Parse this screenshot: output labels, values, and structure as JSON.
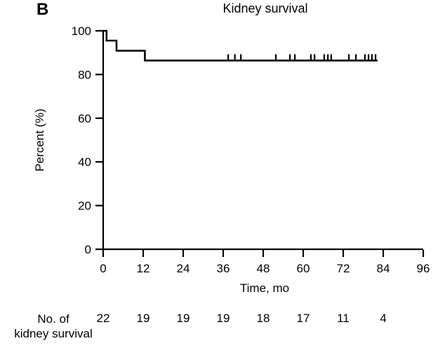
{
  "panel_label": "B",
  "chart_data": {
    "type": "line",
    "subtype": "kaplan-meier-step-curve",
    "title": "Kidney survival",
    "xlabel": "Time, mo",
    "ylabel": "Percent (%)",
    "xlim": [
      0,
      96
    ],
    "ylim": [
      0,
      100
    ],
    "x_ticks": [
      0,
      12,
      24,
      36,
      48,
      60,
      72,
      84,
      96
    ],
    "y_ticks": [
      0,
      20,
      40,
      60,
      80,
      100
    ],
    "grid": false,
    "legend": "none",
    "line_color": "#000000",
    "background_color": "#ffffff",
    "series": [
      {
        "name": "kidney survival",
        "step_points": [
          [
            0,
            100
          ],
          [
            1,
            100
          ],
          [
            1,
            95.5
          ],
          [
            4,
            95.5
          ],
          [
            4,
            90.9
          ],
          [
            12.5,
            90.9
          ],
          [
            12.5,
            86.4
          ],
          [
            82,
            86.4
          ]
        ],
        "censor_times": [
          37.5,
          39.5,
          41.3,
          51.8,
          56.0,
          57.5,
          62.3,
          63.4,
          66.3,
          67.4,
          68.4,
          73.7,
          75.8,
          78.5,
          79.6,
          80.6,
          81.7
        ],
        "censor_level": 86.4
      }
    ]
  },
  "risk_table": {
    "label_line1": "No. of",
    "label_line2": "kidney survival",
    "times": [
      0,
      12,
      24,
      36,
      48,
      60,
      72,
      84
    ],
    "values": [
      22,
      19,
      19,
      19,
      18,
      17,
      11,
      4
    ]
  }
}
